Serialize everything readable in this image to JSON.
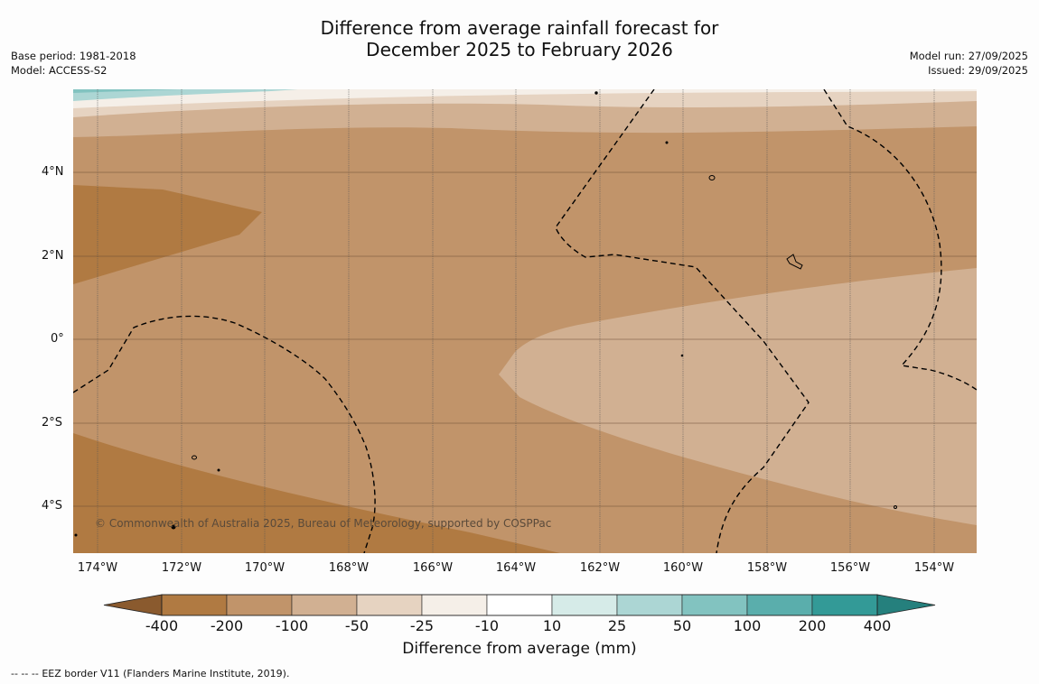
{
  "title": {
    "line1": "Difference from average rainfall forecast for",
    "line2": "December 2025 to February 2026"
  },
  "meta_left": {
    "base_period": "Base period: 1981-2018",
    "model": "Model: ACCESS-S2"
  },
  "meta_right": {
    "model_run": "Model run: 27/09/2025",
    "issued": "Issued: 29/09/2025"
  },
  "map": {
    "lat_labels": [
      "4°N",
      "2°N",
      "0°",
      "2°S",
      "4°S"
    ],
    "lon_labels": [
      "174°W",
      "172°W",
      "170°W",
      "168°W",
      "166°W",
      "164°W",
      "162°W",
      "160°W",
      "158°W",
      "156°W",
      "154°W"
    ],
    "copyright": "© Commonwealth of Australia 2025, Bureau of Meteorology, supported by COSPPac",
    "eez_border_style": "dashed"
  },
  "colorbar": {
    "title": "Difference from average (mm)",
    "ticks": [
      "-400",
      "-200",
      "-100",
      "-50",
      "-25",
      "-10",
      "10",
      "25",
      "50",
      "100",
      "200",
      "400"
    ],
    "colors": [
      "#8a5a2e",
      "#b07a42",
      "#c1946a",
      "#d1b092",
      "#e6d3c1",
      "#f5efe8",
      "#ffffff",
      "#d6ebe8",
      "#acd6d4",
      "#82c3c0",
      "#5aaeac",
      "#339a97",
      "#25807d"
    ]
  },
  "footer": {
    "legend_symbol": "--  --  --",
    "legend_text": "EEZ border V11 (Flanders Marine Institute, 2019)."
  }
}
